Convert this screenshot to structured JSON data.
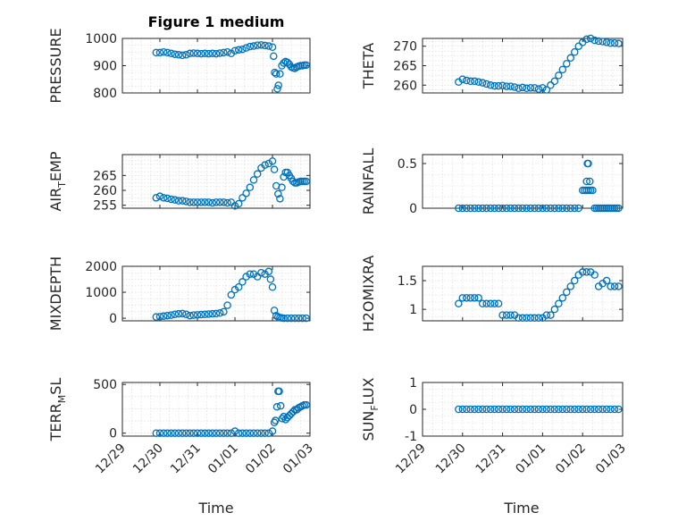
{
  "figure": {
    "title": "Figure 1 medium",
    "xlabel": "Time"
  },
  "chart_data": [
    {
      "type": "scatter",
      "title": "Figure 1 medium",
      "ylabel": "PRESSURE",
      "xlim": [
        0,
        5
      ],
      "ylim": [
        800,
        1000
      ],
      "yticks": [
        800,
        900,
        1000
      ],
      "xticks": [
        "12/29",
        "12/30",
        "12/31",
        "01/01",
        "01/02",
        "01/03"
      ],
      "x": [
        0.9,
        1.0,
        1.1,
        1.2,
        1.3,
        1.4,
        1.5,
        1.6,
        1.7,
        1.8,
        1.9,
        2.0,
        2.1,
        2.2,
        2.3,
        2.4,
        2.5,
        2.6,
        2.7,
        2.8,
        2.9,
        3.0,
        3.1,
        3.2,
        3.3,
        3.4,
        3.5,
        3.6,
        3.7,
        3.8,
        3.9,
        4.0,
        4.03,
        4.06,
        4.1,
        4.13,
        4.16,
        4.2,
        4.25,
        4.3,
        4.35,
        4.4,
        4.45,
        4.5,
        4.55,
        4.6,
        4.65,
        4.7,
        4.75,
        4.8,
        4.85,
        4.9
      ],
      "y": [
        948,
        948,
        950,
        948,
        945,
        942,
        940,
        938,
        940,
        945,
        946,
        945,
        944,
        945,
        944,
        945,
        944,
        946,
        948,
        950,
        945,
        955,
        958,
        960,
        965,
        970,
        972,
        975,
        976,
        974,
        972,
        968,
        935,
        875,
        870,
        815,
        828,
        870,
        900,
        910,
        915,
        912,
        905,
        895,
        892,
        890,
        895,
        898,
        900,
        900,
        902,
        902
      ]
    },
    {
      "type": "scatter",
      "ylabel": "THETA",
      "xlim": [
        0,
        5
      ],
      "ylim": [
        258,
        272
      ],
      "yticks": [
        260,
        265,
        270
      ],
      "xticks": [
        "12/29",
        "12/30",
        "12/31",
        "01/01",
        "01/02",
        "01/03"
      ],
      "x": [
        0.9,
        1.0,
        1.1,
        1.2,
        1.3,
        1.4,
        1.5,
        1.6,
        1.7,
        1.8,
        1.9,
        2.0,
        2.1,
        2.2,
        2.3,
        2.4,
        2.5,
        2.6,
        2.7,
        2.8,
        2.9,
        3.0,
        3.1,
        3.2,
        3.3,
        3.4,
        3.5,
        3.6,
        3.7,
        3.8,
        3.9,
        4.0,
        4.1,
        4.2,
        4.3,
        4.4,
        4.5,
        4.6,
        4.7,
        4.8,
        4.9
      ],
      "y": [
        260.8,
        261.5,
        261.2,
        261.0,
        261.0,
        260.8,
        260.6,
        260.3,
        260.0,
        259.8,
        259.8,
        259.9,
        259.7,
        259.7,
        259.5,
        259.2,
        259.4,
        259.2,
        259.3,
        259.3,
        259.0,
        259.3,
        258.8,
        260.0,
        261.0,
        262.5,
        264.0,
        265.5,
        267.0,
        268.5,
        270.0,
        271.0,
        271.8,
        272.0,
        271.5,
        271.3,
        271.2,
        271.0,
        270.8,
        270.8,
        270.7
      ]
    },
    {
      "type": "scatter",
      "ylabel": "AIR_TEMP",
      "xlim": [
        0,
        5
      ],
      "ylim": [
        254,
        272
      ],
      "yticks": [
        255,
        260,
        265
      ],
      "xticks": [
        "12/29",
        "12/30",
        "12/31",
        "01/01",
        "01/02",
        "01/03"
      ],
      "x": [
        0.9,
        1.0,
        1.1,
        1.2,
        1.3,
        1.4,
        1.5,
        1.6,
        1.7,
        1.8,
        1.9,
        2.0,
        2.1,
        2.2,
        2.3,
        2.4,
        2.5,
        2.6,
        2.7,
        2.8,
        2.9,
        3.0,
        3.1,
        3.2,
        3.3,
        3.4,
        3.5,
        3.6,
        3.7,
        3.8,
        3.9,
        4.0,
        4.05,
        4.1,
        4.15,
        4.2,
        4.25,
        4.3,
        4.35,
        4.4,
        4.45,
        4.5,
        4.55,
        4.6,
        4.65,
        4.7,
        4.75,
        4.8,
        4.85,
        4.9
      ],
      "y": [
        257.5,
        258.0,
        257.5,
        257.3,
        257.0,
        256.8,
        256.5,
        256.5,
        256.3,
        256.0,
        256.0,
        256.0,
        256.0,
        256.0,
        256.0,
        255.8,
        256.0,
        256.0,
        256.0,
        255.8,
        256.0,
        254.8,
        255.5,
        257.5,
        259.0,
        261.0,
        263.5,
        265.5,
        267.5,
        268.5,
        269.0,
        269.8,
        267.0,
        261.5,
        258.8,
        257.2,
        261.0,
        264.5,
        266.0,
        266.0,
        265.0,
        264.0,
        263.0,
        262.5,
        262.5,
        262.8,
        263.0,
        263.0,
        263.0,
        263.0
      ]
    },
    {
      "type": "scatter",
      "ylabel": "RAINFALL",
      "xlim": [
        0,
        5
      ],
      "ylim": [
        0,
        0.6
      ],
      "yticks": [
        0,
        0.5
      ],
      "xticks": [
        "12/29",
        "12/30",
        "12/31",
        "01/01",
        "01/02",
        "01/03"
      ],
      "x": [
        0.9,
        1.0,
        1.1,
        1.2,
        1.3,
        1.4,
        1.5,
        1.6,
        1.7,
        1.8,
        1.9,
        2.0,
        2.1,
        2.2,
        2.3,
        2.4,
        2.5,
        2.6,
        2.7,
        2.8,
        2.9,
        3.0,
        3.1,
        3.2,
        3.3,
        3.4,
        3.5,
        3.6,
        3.7,
        3.8,
        3.9,
        4.0,
        4.05,
        4.1,
        4.15,
        4.2,
        4.25,
        4.3,
        4.35,
        4.4,
        4.45,
        4.5,
        4.55,
        4.6,
        4.65,
        4.7,
        4.75,
        4.8,
        4.85,
        4.9,
        4.1,
        4.12,
        4.14,
        4.18
      ],
      "y": [
        0,
        0,
        0,
        0,
        0,
        0,
        0,
        0,
        0,
        0,
        0,
        0,
        0,
        0,
        0,
        0,
        0,
        0,
        0,
        0,
        0,
        0,
        0,
        0,
        0,
        0,
        0,
        0,
        0,
        0,
        0,
        0.2,
        0.2,
        0.2,
        0.2,
        0.2,
        0.2,
        0,
        0,
        0,
        0,
        0,
        0,
        0,
        0,
        0,
        0,
        0,
        0,
        0,
        0.3,
        0.5,
        0.5,
        0.3
      ]
    },
    {
      "type": "scatter",
      "ylabel": "MIXDEPTH",
      "xlim": [
        0,
        5
      ],
      "ylim": [
        -100,
        2000
      ],
      "yticks": [
        0,
        1000,
        2000
      ],
      "xticks": [
        "12/29",
        "12/30",
        "12/31",
        "01/01",
        "01/02",
        "01/03"
      ],
      "x": [
        0.9,
        1.0,
        1.1,
        1.2,
        1.3,
        1.4,
        1.5,
        1.6,
        1.7,
        1.8,
        1.9,
        2.0,
        2.1,
        2.2,
        2.3,
        2.4,
        2.5,
        2.6,
        2.7,
        2.8,
        2.9,
        3.0,
        3.1,
        3.2,
        3.3,
        3.4,
        3.5,
        3.6,
        3.7,
        3.8,
        3.9,
        3.95,
        4.0,
        4.05,
        4.1,
        4.15,
        4.2,
        4.25,
        4.3,
        4.4,
        4.5,
        4.6,
        4.7,
        4.8,
        4.9
      ],
      "y": [
        50,
        60,
        80,
        100,
        120,
        150,
        170,
        180,
        150,
        100,
        120,
        130,
        140,
        150,
        160,
        170,
        180,
        200,
        250,
        500,
        900,
        1100,
        1200,
        1400,
        1600,
        1700,
        1700,
        1600,
        1750,
        1700,
        1800,
        1500,
        1200,
        300,
        100,
        50,
        20,
        10,
        0,
        0,
        0,
        0,
        0,
        0,
        0
      ]
    },
    {
      "type": "scatter",
      "ylabel": "H2OMIXRA",
      "xlim": [
        0,
        5
      ],
      "ylim": [
        0.8,
        1.75
      ],
      "yticks": [
        1,
        1.5
      ],
      "xticks": [
        "12/29",
        "12/30",
        "12/31",
        "01/01",
        "01/02",
        "01/03"
      ],
      "x": [
        0.9,
        1.0,
        1.1,
        1.2,
        1.3,
        1.4,
        1.5,
        1.6,
        1.7,
        1.8,
        1.9,
        2.0,
        2.1,
        2.2,
        2.3,
        2.4,
        2.5,
        2.6,
        2.7,
        2.8,
        2.9,
        3.0,
        3.1,
        3.2,
        3.3,
        3.4,
        3.5,
        3.6,
        3.7,
        3.8,
        3.9,
        4.0,
        4.1,
        4.2,
        4.3,
        4.4,
        4.5,
        4.6,
        4.7,
        4.8,
        4.9
      ],
      "y": [
        1.1,
        1.2,
        1.2,
        1.2,
        1.2,
        1.2,
        1.1,
        1.1,
        1.1,
        1.1,
        1.1,
        0.9,
        0.9,
        0.9,
        0.9,
        0.85,
        0.85,
        0.85,
        0.85,
        0.85,
        0.85,
        0.85,
        0.9,
        0.9,
        1.0,
        1.1,
        1.2,
        1.3,
        1.4,
        1.5,
        1.6,
        1.65,
        1.65,
        1.65,
        1.6,
        1.4,
        1.45,
        1.5,
        1.4,
        1.4,
        1.4
      ]
    },
    {
      "type": "scatter",
      "ylabel": "TERR_MSL",
      "xlim": [
        0,
        5
      ],
      "ylim": [
        -30,
        520
      ],
      "yticks": [
        0,
        500
      ],
      "xticks": [
        "12/29",
        "12/30",
        "12/31",
        "01/01",
        "01/02",
        "01/03"
      ],
      "x": [
        0.9,
        1.0,
        1.1,
        1.2,
        1.3,
        1.4,
        1.5,
        1.6,
        1.7,
        1.8,
        1.9,
        2.0,
        2.1,
        2.2,
        2.3,
        2.4,
        2.5,
        2.6,
        2.7,
        2.8,
        2.9,
        3.0,
        3.1,
        3.2,
        3.3,
        3.4,
        3.5,
        3.6,
        3.7,
        3.8,
        3.9,
        4.0,
        4.05,
        4.08,
        4.12,
        4.15,
        4.18,
        4.22,
        4.26,
        4.3,
        4.35,
        4.4,
        4.45,
        4.5,
        4.55,
        4.6,
        4.65,
        4.7,
        4.75,
        4.8,
        4.85,
        4.9
      ],
      "y": [
        0,
        0,
        0,
        0,
        0,
        0,
        0,
        0,
        0,
        0,
        0,
        0,
        0,
        0,
        0,
        0,
        0,
        0,
        0,
        0,
        0,
        20,
        0,
        0,
        0,
        0,
        0,
        0,
        0,
        0,
        0,
        20,
        110,
        130,
        270,
        430,
        430,
        280,
        150,
        170,
        140,
        160,
        180,
        200,
        220,
        240,
        240,
        260,
        270,
        280,
        290,
        290
      ]
    },
    {
      "type": "scatter",
      "ylabel": "SUN_FLUX",
      "xlim": [
        0,
        5
      ],
      "ylim": [
        -1,
        1
      ],
      "yticks": [
        -1,
        0,
        1
      ],
      "xticks": [
        "12/29",
        "12/30",
        "12/31",
        "01/01",
        "01/02",
        "01/03"
      ],
      "x": [
        0.9,
        1.0,
        1.1,
        1.2,
        1.3,
        1.4,
        1.5,
        1.6,
        1.7,
        1.8,
        1.9,
        2.0,
        2.1,
        2.2,
        2.3,
        2.4,
        2.5,
        2.6,
        2.7,
        2.8,
        2.9,
        3.0,
        3.1,
        3.2,
        3.3,
        3.4,
        3.5,
        3.6,
        3.7,
        3.8,
        3.9,
        4.0,
        4.1,
        4.2,
        4.3,
        4.4,
        4.5,
        4.6,
        4.7,
        4.8,
        4.9
      ],
      "y": [
        0,
        0,
        0,
        0,
        0,
        0,
        0,
        0,
        0,
        0,
        0,
        0,
        0,
        0,
        0,
        0,
        0,
        0,
        0,
        0,
        0,
        0,
        0,
        0,
        0,
        0,
        0,
        0,
        0,
        0,
        0,
        0,
        0,
        0,
        0,
        0,
        0,
        0,
        0,
        0,
        0
      ]
    }
  ]
}
